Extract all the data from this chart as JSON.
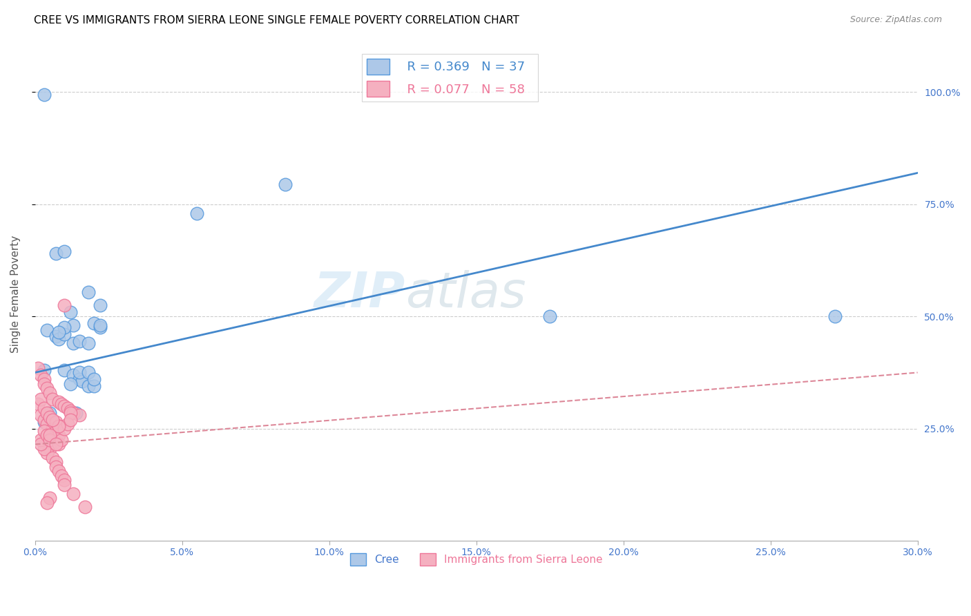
{
  "title": "CREE VS IMMIGRANTS FROM SIERRA LEONE SINGLE FEMALE POVERTY CORRELATION CHART",
  "source": "Source: ZipAtlas.com",
  "ylabel": "Single Female Poverty",
  "yaxis_labels": [
    "100.0%",
    "75.0%",
    "50.0%",
    "25.0%"
  ],
  "yaxis_values": [
    1.0,
    0.75,
    0.5,
    0.25
  ],
  "xlim": [
    0.0,
    0.3
  ],
  "ylim": [
    0.0,
    1.1
  ],
  "watermark_text": "ZIP",
  "watermark_text2": "atlas",
  "legend_r1": "R = 0.369",
  "legend_n1": "N = 37",
  "legend_r2": "R = 0.077",
  "legend_n2": "N = 58",
  "cree_color": "#adc8e8",
  "immigrant_color": "#f5b0c0",
  "cree_edge_color": "#5599dd",
  "immigrant_edge_color": "#ee7799",
  "cree_line_color": "#4488cc",
  "immigrant_line_color": "#dd8899",
  "title_fontsize": 11,
  "source_fontsize": 9,
  "cree_x": [
    0.003,
    0.01,
    0.013,
    0.015,
    0.016,
    0.018,
    0.02,
    0.013,
    0.015,
    0.018,
    0.012,
    0.007,
    0.004,
    0.007,
    0.008,
    0.01,
    0.013,
    0.02,
    0.022,
    0.01,
    0.008,
    0.003,
    0.005,
    0.012,
    0.015,
    0.018,
    0.02,
    0.022,
    0.175,
    0.272,
    0.085,
    0.055,
    0.003,
    0.01,
    0.022,
    0.018,
    0.014
  ],
  "cree_y": [
    0.38,
    0.38,
    0.37,
    0.36,
    0.355,
    0.345,
    0.345,
    0.44,
    0.445,
    0.44,
    0.51,
    0.64,
    0.47,
    0.455,
    0.45,
    0.46,
    0.48,
    0.485,
    0.475,
    0.475,
    0.465,
    0.265,
    0.285,
    0.35,
    0.375,
    0.375,
    0.36,
    0.48,
    0.5,
    0.5,
    0.795,
    0.73,
    0.995,
    0.645,
    0.525,
    0.555,
    0.285
  ],
  "immigrant_x": [
    0.001,
    0.002,
    0.003,
    0.004,
    0.006,
    0.007,
    0.008,
    0.002,
    0.003,
    0.004,
    0.005,
    0.007,
    0.008,
    0.001,
    0.002,
    0.003,
    0.003,
    0.004,
    0.005,
    0.006,
    0.008,
    0.009,
    0.01,
    0.011,
    0.012,
    0.013,
    0.015,
    0.01,
    0.012,
    0.006,
    0.005,
    0.004,
    0.003,
    0.002,
    0.002,
    0.003,
    0.004,
    0.005,
    0.006,
    0.007,
    0.007,
    0.008,
    0.009,
    0.01,
    0.01,
    0.008,
    0.009,
    0.01,
    0.011,
    0.012,
    0.013,
    0.005,
    0.004,
    0.008,
    0.005,
    0.006,
    0.007,
    0.017
  ],
  "immigrant_y": [
    0.305,
    0.28,
    0.27,
    0.26,
    0.25,
    0.245,
    0.235,
    0.315,
    0.295,
    0.285,
    0.275,
    0.265,
    0.255,
    0.385,
    0.37,
    0.36,
    0.35,
    0.34,
    0.33,
    0.315,
    0.31,
    0.305,
    0.3,
    0.295,
    0.29,
    0.285,
    0.28,
    0.525,
    0.285,
    0.215,
    0.205,
    0.195,
    0.205,
    0.225,
    0.215,
    0.245,
    0.235,
    0.225,
    0.185,
    0.175,
    0.165,
    0.155,
    0.145,
    0.135,
    0.125,
    0.215,
    0.225,
    0.25,
    0.26,
    0.27,
    0.105,
    0.095,
    0.085,
    0.255,
    0.235,
    0.27,
    0.215,
    0.075
  ]
}
